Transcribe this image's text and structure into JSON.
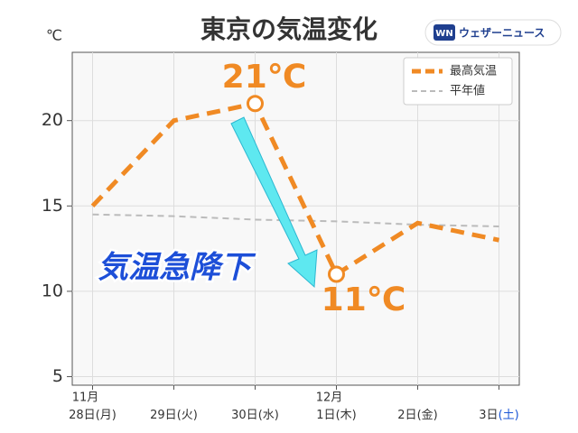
{
  "chart_data": {
    "type": "line",
    "title": "東京の気温変化",
    "brand": "ウェザーニュース",
    "brand_icon": "WN",
    "y_unit": "℃",
    "months": [
      "11月",
      null,
      null,
      "12月",
      null,
      null
    ],
    "categories": [
      "28日",
      "29日",
      "30日",
      "1日",
      "2日",
      "3日"
    ],
    "weekdays": [
      "(月)",
      "(火)",
      "(水)",
      "(木)",
      "(金)",
      "(土)"
    ],
    "weekday_colors": [
      "#333333",
      "#333333",
      "#333333",
      "#333333",
      "#333333",
      "#1a56d6"
    ],
    "series": [
      {
        "name": "最高気温",
        "color": "#f08a24",
        "values": [
          15,
          20,
          21,
          11,
          14,
          13
        ],
        "value_labels": [
          null,
          null,
          "21℃",
          null,
          null,
          null
        ],
        "value_labels_below": [
          null,
          null,
          null,
          "11℃",
          null,
          null
        ]
      },
      {
        "name": "平年値",
        "color": "#bbbbbb",
        "values": [
          14.5,
          14.4,
          14.2,
          14.1,
          13.9,
          13.8
        ]
      }
    ],
    "annotation": "気温急降下",
    "ylim": [
      4.5,
      24
    ],
    "yticks": [
      5,
      10,
      15,
      20
    ],
    "grid": true,
    "legend": "top-right"
  }
}
